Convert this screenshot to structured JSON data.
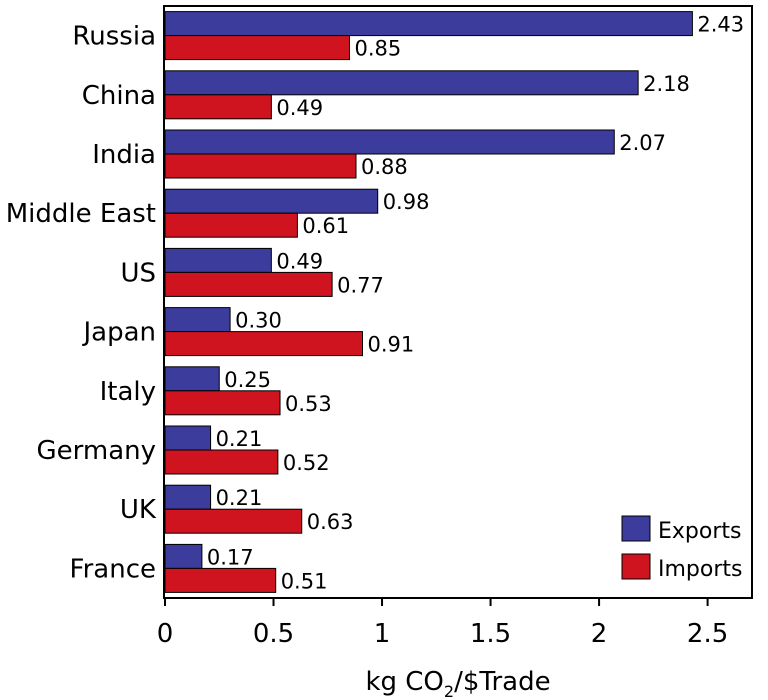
{
  "chart_data": {
    "type": "bar",
    "orientation": "horizontal",
    "categories": [
      "Russia",
      "China",
      "India",
      "Middle East",
      "US",
      "Japan",
      "Italy",
      "Germany",
      "UK",
      "France"
    ],
    "series": [
      {
        "name": "Exports",
        "color": "#3c3c9c",
        "values": [
          2.43,
          2.18,
          2.07,
          0.98,
          0.49,
          0.3,
          0.25,
          0.21,
          0.21,
          0.17
        ],
        "labels": [
          "2.43",
          "2.18",
          "2.07",
          "0.98",
          "0.49",
          "0.30",
          "0.25",
          "0.21",
          "0.21",
          "0.17"
        ]
      },
      {
        "name": "Imports",
        "color": "#d0141f",
        "values": [
          0.85,
          0.49,
          0.88,
          0.61,
          0.77,
          0.91,
          0.53,
          0.52,
          0.63,
          0.51
        ],
        "labels": [
          "0.85",
          "0.49",
          "0.88",
          "0.61",
          "0.77",
          "0.91",
          "0.53",
          "0.52",
          "0.63",
          "0.51"
        ]
      }
    ],
    "xlim": [
      0,
      2.7
    ],
    "xticks": [
      0,
      0.5,
      1,
      1.5,
      2,
      2.5
    ],
    "xtick_labels": [
      "0",
      "0.5",
      "1",
      "1.5",
      "2",
      "2.5"
    ],
    "xlabel_parts": {
      "main": "kg CO",
      "sub": "2",
      "rest": "/$Trade"
    },
    "ylabel": "",
    "title": "",
    "grid": false,
    "legend": {
      "position": "bottom-right",
      "entries": [
        "Exports",
        "Imports"
      ]
    }
  }
}
